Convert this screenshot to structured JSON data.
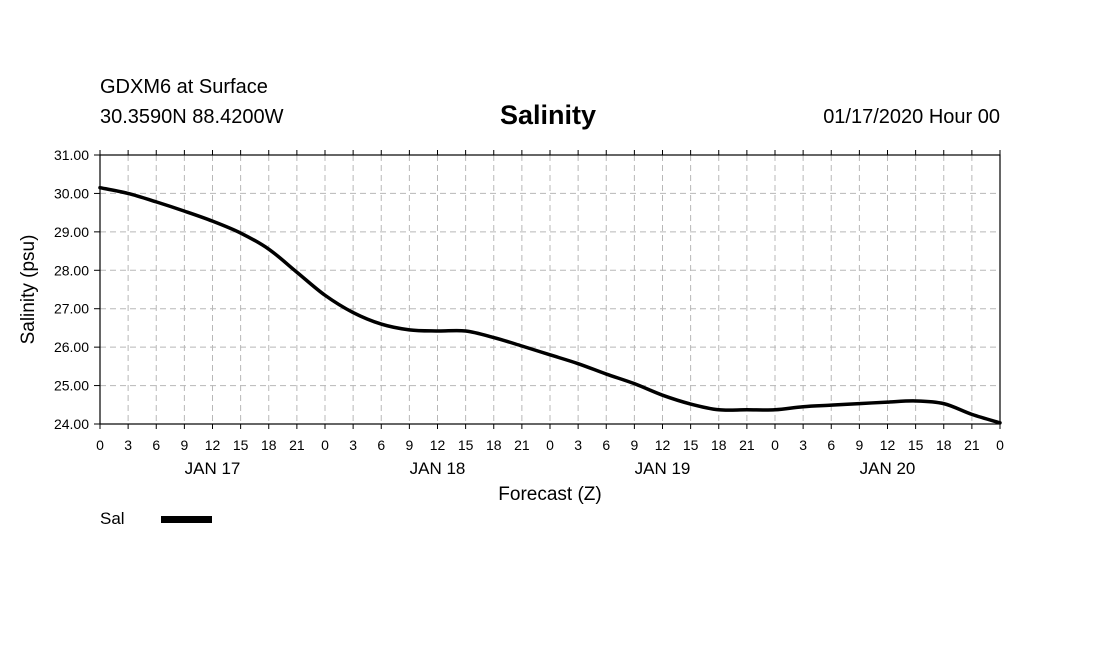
{
  "header": {
    "station": "GDXM6 at Surface",
    "location": "30.3590N 88.4200W",
    "title": "Salinity",
    "datetime": "01/17/2020 Hour 00"
  },
  "legend": {
    "label": "Sal",
    "color": "#000000"
  },
  "chart_data": {
    "type": "line",
    "title": "Salinity",
    "xlabel": "Forecast (Z)",
    "ylabel": "Salinity (psu)",
    "ylim": [
      24,
      31
    ],
    "xlim": [
      0,
      96
    ],
    "x_unit": "hours from 01/17/2020 00Z",
    "yticks": [
      "24.00",
      "25.00",
      "26.00",
      "27.00",
      "28.00",
      "29.00",
      "30.00",
      "31.00"
    ],
    "xtick_labels": [
      "0",
      "3",
      "6",
      "9",
      "12",
      "15",
      "18",
      "21",
      "0",
      "3",
      "6",
      "9",
      "12",
      "15",
      "18",
      "21",
      "0",
      "3",
      "6",
      "9",
      "12",
      "15",
      "18",
      "21",
      "0",
      "3",
      "6",
      "9",
      "12",
      "15",
      "18",
      "21",
      "0"
    ],
    "day_labels": [
      {
        "hour": 12,
        "label": "JAN 17"
      },
      {
        "hour": 36,
        "label": "JAN 18"
      },
      {
        "hour": 60,
        "label": "JAN 19"
      },
      {
        "hour": 84,
        "label": "JAN 20"
      }
    ],
    "grid": true,
    "series": [
      {
        "name": "Sal",
        "x": [
          0,
          3,
          6,
          9,
          12,
          15,
          18,
          21,
          24,
          27,
          30,
          33,
          36,
          39,
          42,
          45,
          48,
          51,
          54,
          57,
          60,
          63,
          66,
          69,
          72,
          75,
          78,
          81,
          84,
          87,
          90,
          93,
          96
        ],
        "values": [
          30.15,
          30.0,
          29.78,
          29.54,
          29.28,
          28.97,
          28.55,
          27.95,
          27.35,
          26.9,
          26.6,
          26.45,
          26.42,
          26.42,
          26.25,
          26.03,
          25.8,
          25.57,
          25.3,
          25.05,
          24.75,
          24.52,
          24.37,
          24.37,
          24.37,
          24.45,
          24.49,
          24.53,
          24.57,
          24.6,
          24.53,
          24.25,
          24.03
        ]
      }
    ]
  }
}
